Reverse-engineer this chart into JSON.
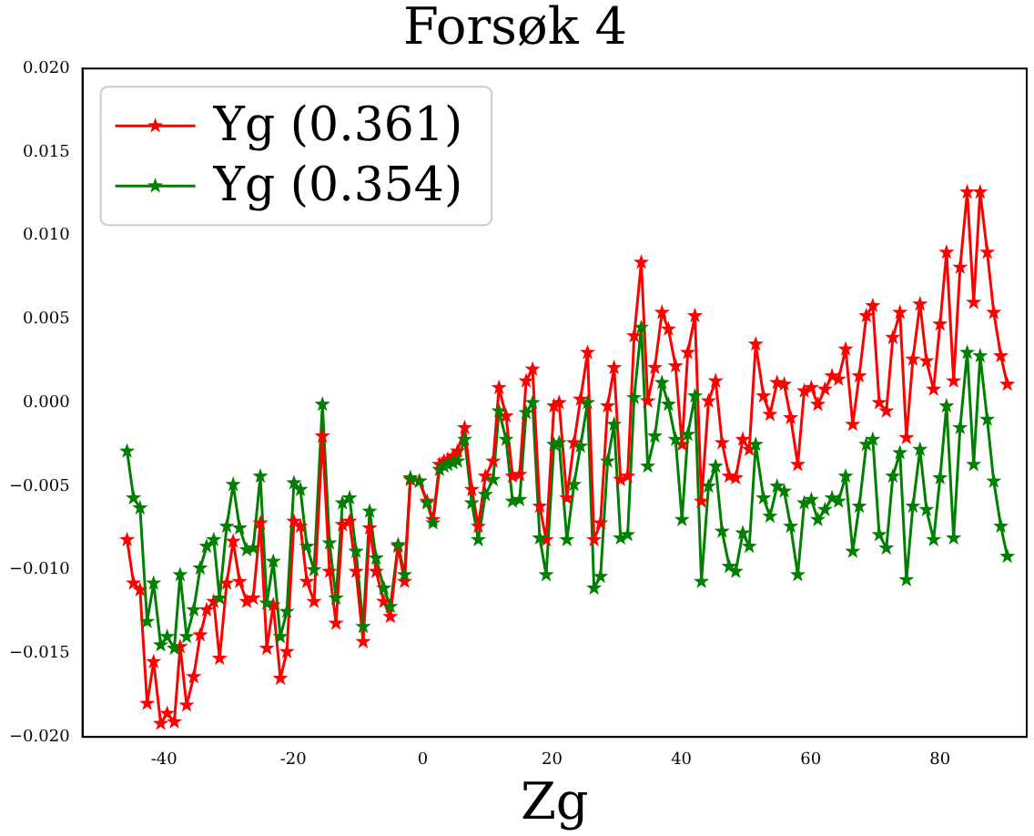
{
  "chart_data": {
    "type": "line",
    "title": "Forsøk 4",
    "xlabel": "Zg",
    "x": [
      -45.7,
      -44.7,
      -43.7,
      -42.6,
      -41.6,
      -40.5,
      -39.5,
      -38.4,
      -37.5,
      -36.5,
      -35.4,
      -34.4,
      -33.4,
      -32.3,
      -31.4,
      -30.3,
      -29.3,
      -28.3,
      -27.2,
      -26.2,
      -25.1,
      -24.1,
      -23.1,
      -22.0,
      -21.0,
      -19.9,
      -18.9,
      -17.9,
      -16.8,
      -15.5,
      -14.4,
      -13.4,
      -12.4,
      -11.3,
      -10.3,
      -9.2,
      -8.2,
      -7.2,
      -6.0,
      -5.0,
      -3.8,
      -2.8,
      -1.9,
      -0.5,
      0.7,
      1.6,
      2.6,
      3.3,
      3.9,
      4.7,
      5.4,
      6.5,
      7.6,
      8.6,
      9.7,
      10.9,
      11.8,
      12.9,
      13.9,
      15.0,
      16.0,
      17.0,
      18.1,
      19.1,
      20.3,
      21.1,
      22.3,
      23.4,
      24.4,
      25.5,
      26.5,
      27.5,
      28.6,
      29.6,
      30.6,
      31.7,
      32.7,
      33.8,
      34.8,
      35.9,
      37.0,
      38.0,
      39.1,
      40.1,
      41.0,
      42.1,
      43.1,
      44.2,
      45.3,
      46.3,
      47.4,
      48.4,
      49.5,
      50.5,
      51.5,
      52.7,
      53.7,
      54.8,
      55.9,
      56.9,
      58.0,
      59.0,
      60.1,
      61.1,
      62.2,
      63.3,
      64.3,
      65.4,
      66.5,
      67.5,
      68.6,
      69.6,
      70.6,
      71.7,
      72.7,
      73.8,
      74.8,
      75.8,
      76.9,
      77.9,
      79.0,
      80.0,
      81.0,
      82.1,
      83.1,
      84.2,
      85.2,
      86.2,
      87.3,
      88.3,
      89.4,
      90.4
    ],
    "series": [
      {
        "name": "Yg (0.361)",
        "color": "#ff0000",
        "values": [
          -0.0082,
          -0.0108,
          -0.0112,
          -0.018,
          -0.0155,
          -0.0192,
          -0.0186,
          -0.0191,
          -0.0146,
          -0.0181,
          -0.0164,
          -0.0139,
          -0.0124,
          -0.0119,
          -0.0153,
          -0.0108,
          -0.0083,
          -0.0107,
          -0.0119,
          -0.0117,
          -0.0072,
          -0.0147,
          -0.0121,
          -0.0165,
          -0.0149,
          -0.0071,
          -0.0074,
          -0.0107,
          -0.0119,
          -0.002,
          -0.0101,
          -0.0132,
          -0.0073,
          -0.0071,
          -0.0101,
          -0.0143,
          -0.0075,
          -0.0101,
          -0.0119,
          -0.0128,
          -0.0086,
          -0.0107,
          -0.0046,
          -0.0047,
          -0.0059,
          -0.007,
          -0.0037,
          -0.0035,
          -0.0034,
          -0.0032,
          -0.0029,
          -0.0015,
          -0.0052,
          -0.0074,
          -0.0044,
          -0.0035,
          0.0009,
          -0.0008,
          -0.0044,
          -0.0043,
          0.0013,
          0.002,
          -0.0062,
          -0.0082,
          -0.0002,
          0.0,
          -0.0057,
          -0.0024,
          0.0002,
          0.003,
          -0.0082,
          -0.0072,
          -0.0002,
          0.0021,
          -0.0046,
          -0.0044,
          0.004,
          0.0084,
          0.0001,
          0.0021,
          0.0054,
          0.0044,
          0.0022,
          -0.0025,
          0.003,
          0.0052,
          -0.0059,
          0.0001,
          0.0013,
          -0.0024,
          -0.0044,
          -0.0045,
          -0.0022,
          -0.0028,
          0.0035,
          0.0004,
          -0.0007,
          0.0012,
          0.0011,
          -0.0009,
          -0.0037,
          0.0007,
          0.0009,
          -0.0001,
          0.0008,
          0.0016,
          0.0014,
          0.0032,
          -0.0013,
          0.0016,
          0.0052,
          0.0058,
          0.0,
          -0.0005,
          0.0039,
          0.0054,
          -0.0021,
          0.0026,
          0.0059,
          0.0025,
          0.0008,
          0.0047,
          0.009,
          0.0013,
          0.0081,
          0.0126,
          0.006,
          0.0126,
          0.009,
          0.0054,
          0.0028,
          0.0011
        ]
      },
      {
        "name": "Yg (0.354)",
        "color": "#008000",
        "values": [
          -0.0029,
          -0.0057,
          -0.0063,
          -0.0131,
          -0.0108,
          -0.0145,
          -0.014,
          -0.0147,
          -0.0103,
          -0.014,
          -0.0124,
          -0.0099,
          -0.0086,
          -0.0082,
          -0.0117,
          -0.0074,
          -0.0049,
          -0.0075,
          -0.0088,
          -0.0087,
          -0.0044,
          -0.012,
          -0.0095,
          -0.014,
          -0.0125,
          -0.0048,
          -0.0052,
          -0.0086,
          -0.01,
          -0.0001,
          -0.0084,
          -0.0117,
          -0.006,
          -0.0057,
          -0.0089,
          -0.0134,
          -0.0065,
          -0.0093,
          -0.0111,
          -0.0122,
          -0.0085,
          -0.0103,
          -0.0045,
          -0.0047,
          -0.006,
          -0.0072,
          -0.004,
          -0.0038,
          -0.0037,
          -0.0036,
          -0.0035,
          -0.0022,
          -0.006,
          -0.0082,
          -0.0055,
          -0.0046,
          -0.0005,
          -0.0022,
          -0.0059,
          -0.0058,
          -0.0006,
          0.0,
          -0.0081,
          -0.0103,
          -0.0025,
          -0.0024,
          -0.0082,
          -0.0049,
          -0.0026,
          0.0,
          -0.0111,
          -0.0104,
          -0.0035,
          -0.0013,
          -0.0081,
          -0.0079,
          0.0003,
          0.0045,
          -0.0038,
          -0.002,
          0.0012,
          -0.0001,
          -0.0022,
          -0.007,
          -0.0019,
          0.0004,
          -0.0107,
          -0.005,
          -0.0038,
          -0.0077,
          -0.0098,
          -0.0101,
          -0.0078,
          -0.0086,
          -0.0025,
          -0.0057,
          -0.0068,
          -0.005,
          -0.0053,
          -0.0074,
          -0.0103,
          -0.006,
          -0.0058,
          -0.007,
          -0.0064,
          -0.0057,
          -0.0059,
          -0.0044,
          -0.0089,
          -0.0062,
          -0.0025,
          -0.0022,
          -0.0079,
          -0.0087,
          -0.0044,
          -0.003,
          -0.0106,
          -0.0062,
          -0.0028,
          -0.0064,
          -0.0082,
          -0.0045,
          -0.0002,
          -0.0081,
          -0.0015,
          0.003,
          -0.0037,
          0.0028,
          -0.001,
          -0.0047,
          -0.0074,
          -0.0092
        ]
      }
    ],
    "xlim": [
      -52.6,
      93.4
    ],
    "xticks": [
      -40,
      -20,
      0,
      20,
      40,
      60,
      80
    ],
    "ylim": [
      -0.02,
      0.02
    ],
    "yticks": [
      {
        "value": -0.02,
        "label": "−0.020"
      },
      {
        "value": -0.015,
        "label": "−0.015"
      },
      {
        "value": -0.01,
        "label": "−0.010"
      },
      {
        "value": -0.005,
        "label": "−0.005"
      },
      {
        "value": 0,
        "label": "0.000"
      },
      {
        "value": 0.005,
        "label": "0.005"
      },
      {
        "value": 0.01,
        "label": "0.010"
      },
      {
        "value": 0.015,
        "label": "0.015"
      },
      {
        "value": 0.02,
        "label": "0.020"
      }
    ],
    "grid": false,
    "legend": "top left",
    "marker": "star",
    "line_style": "solid"
  }
}
